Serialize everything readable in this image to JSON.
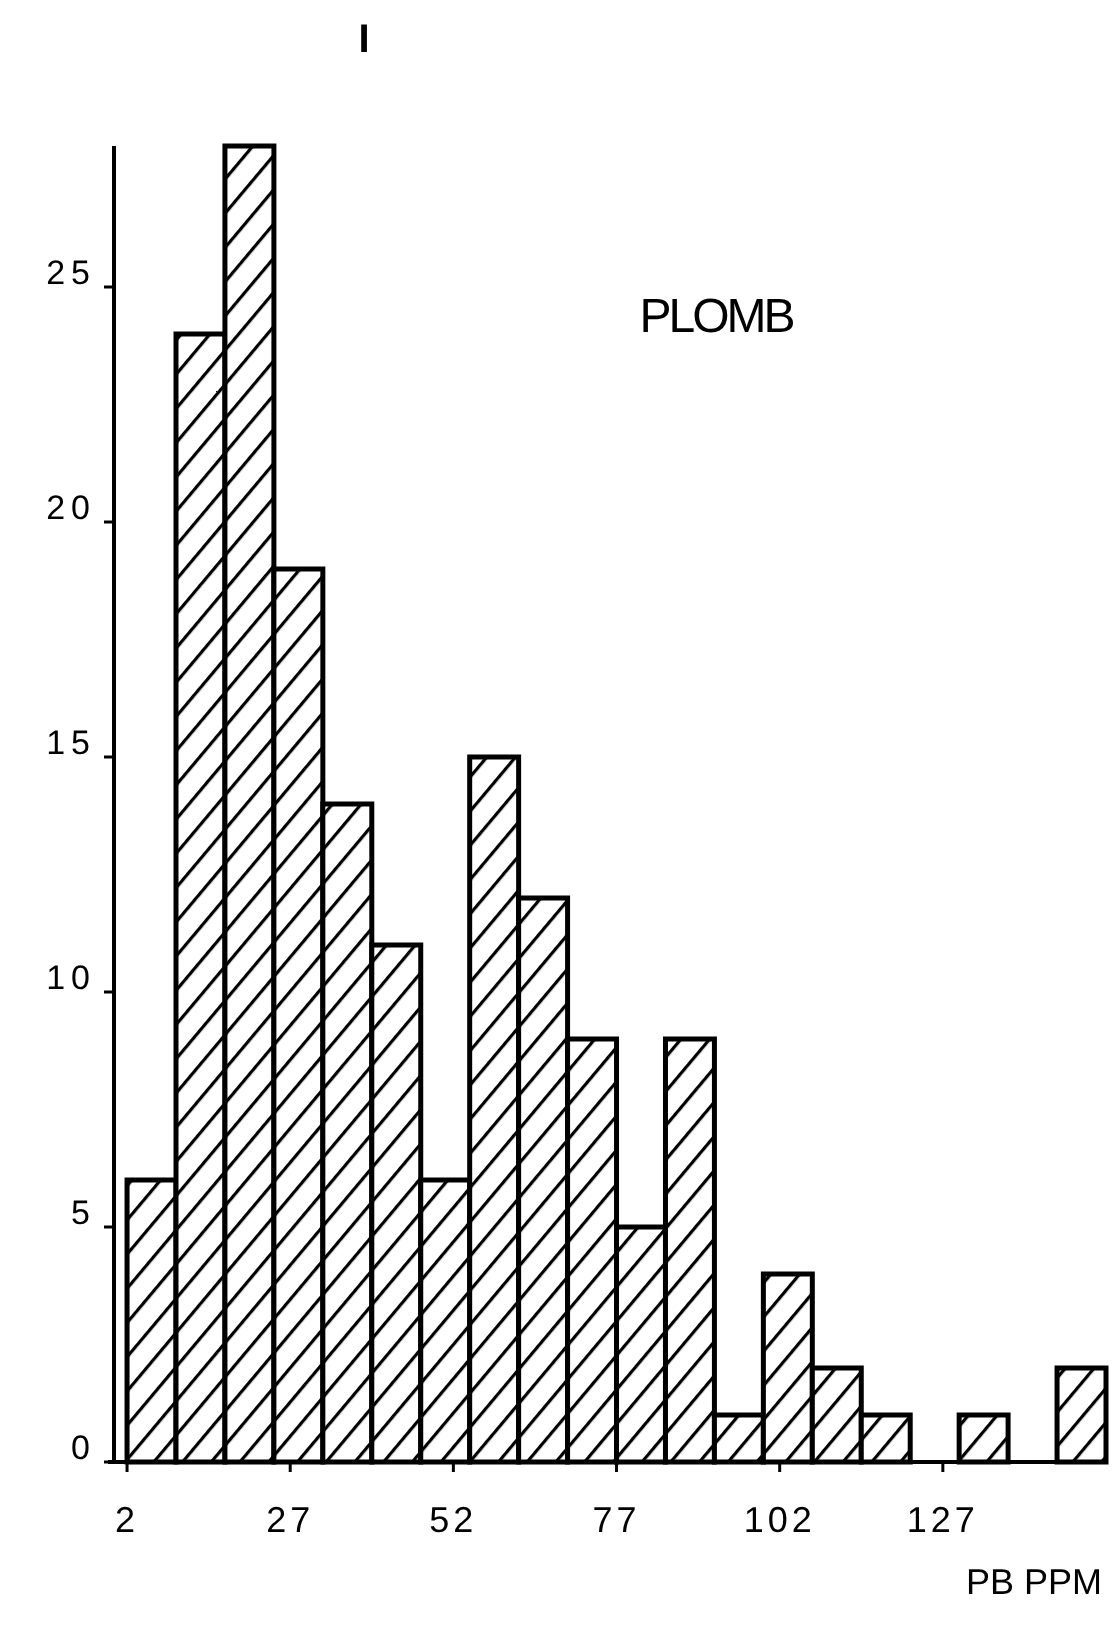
{
  "chart_data": {
    "type": "histogram",
    "title": "I",
    "annotations": [
      "PLOMB"
    ],
    "xlabel": "PB PPM",
    "bins": [
      2,
      9.5,
      17,
      24.5,
      32,
      39.5,
      47,
      54.5,
      62,
      69.5,
      77,
      84.5,
      92,
      99.5,
      107,
      114.5,
      122,
      129.5,
      137,
      144.5,
      152
    ],
    "values": [
      6,
      24,
      28,
      19,
      14,
      11,
      6,
      15,
      12,
      9,
      5,
      9,
      1,
      4,
      2,
      1,
      0,
      1,
      0,
      2
    ],
    "color": "#000000",
    "xlim": [
      0,
      152
    ],
    "xticks": [
      2,
      27,
      52,
      77,
      102,
      127
    ],
    "ylim": [
      0,
      28
    ],
    "yticks": [
      0,
      5,
      10,
      15,
      20,
      25
    ],
    "grid": false
  }
}
